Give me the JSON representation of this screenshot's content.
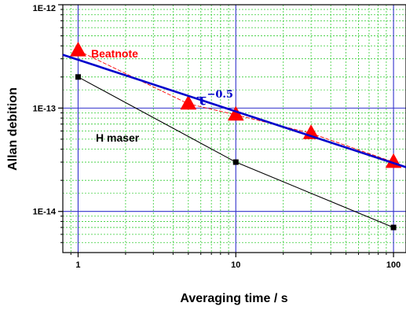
{
  "chart_data": {
    "type": "line",
    "title": "",
    "xlabel": "Averaging time / s",
    "ylabel": "Allan debition",
    "xscale": "log",
    "yscale": "log",
    "xlim": [
      0.8,
      120
    ],
    "ylim": [
      4e-15,
      1e-12
    ],
    "x_ticks": [
      1,
      10,
      100
    ],
    "x_tick_labels": [
      "1",
      "10",
      "100"
    ],
    "y_ticks": [
      1e-14,
      1e-13,
      1e-12
    ],
    "y_tick_labels": [
      "1E-14",
      "1E-13",
      "1E-12"
    ],
    "grid": true,
    "grid_minor": true,
    "legend": "none",
    "series": [
      {
        "name": "Beatnote",
        "marker": "triangle",
        "color": "#ff0000",
        "x": [
          1,
          5,
          10,
          30,
          100
        ],
        "y": [
          3.6e-13,
          1.1e-13,
          8.6e-14,
          5.7e-14,
          3e-14
        ]
      },
      {
        "name": "H maser",
        "marker": "square",
        "color": "#000000",
        "x": [
          1,
          10,
          100
        ],
        "y": [
          2e-13,
          3e-14,
          7e-15
        ]
      }
    ],
    "fit_line": {
      "label_base": "τ",
      "label_exp": "−0.5",
      "color": "#0000cc",
      "x": [
        0.8,
        120
      ],
      "y": [
        3.28e-13,
        2.68e-14
      ]
    }
  },
  "colors": {
    "major_grid": "#3333cc",
    "minor_grid": "#33cc33",
    "beatnote": "#ff0000",
    "hmaser": "#000000",
    "fit": "#0000cc"
  }
}
